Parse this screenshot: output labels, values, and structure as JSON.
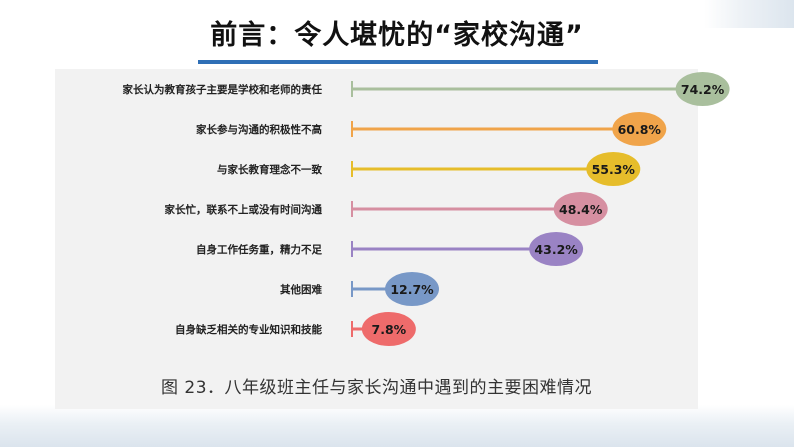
{
  "slide": {
    "title": "前言：令人堪忧的“家校沟通”"
  },
  "chart_data": {
    "type": "bar",
    "orientation": "horizontal",
    "unit": "%",
    "caption": "图 23．八年级班主任与家长沟通中遇到的主要困难情况",
    "categories": [
      "家长认为教育孩子主要是学校和老师的责任",
      "家长参与沟通的积极性不高",
      "与家长教育理念不一致",
      "家长忙，联系不上或没有时间沟通",
      "自身工作任务重，精力不足",
      "其他困难",
      "自身缺乏相关的专业知识和技能"
    ],
    "values": [
      74.2,
      60.8,
      55.3,
      48.4,
      43.2,
      12.7,
      7.8
    ],
    "value_labels": [
      "74.2%",
      "60.8%",
      "55.3%",
      "48.4%",
      "43.2%",
      "12.7%",
      "7.8%"
    ],
    "colors": [
      "#a9bf9d",
      "#f0a44a",
      "#e6bd2b",
      "#d68fa1",
      "#9a83c4",
      "#7898c7",
      "#ee6b6b"
    ],
    "xlim": [
      0,
      80
    ]
  }
}
